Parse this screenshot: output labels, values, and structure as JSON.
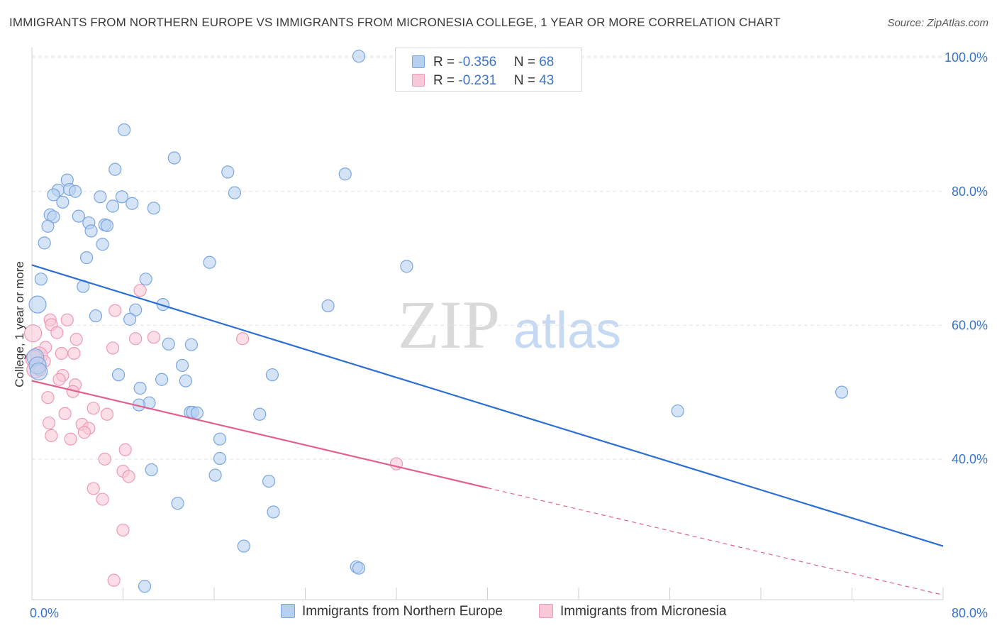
{
  "title": "IMMIGRANTS FROM NORTHERN EUROPE VS IMMIGRANTS FROM MICRONESIA COLLEGE, 1 YEAR OR MORE CORRELATION CHART",
  "source": "Source: ZipAtlas.com",
  "watermark": {
    "zip": "ZIP",
    "atlas": "atlas"
  },
  "legend": {
    "rows": [
      {
        "r_label": "R = ",
        "r_value": "-0.356",
        "n_label": "N = ",
        "n_value": "68"
      },
      {
        "r_label": "R = ",
        "r_value": " -0.231",
        "n_label": "N = ",
        "n_value": "43"
      }
    ]
  },
  "colors": {
    "blue_fill": "#b8d0f0",
    "blue_stroke": "#7aa6e0",
    "blue_line": "#2c6fd1",
    "pink_fill": "#f8c8d6",
    "pink_stroke": "#ee9ab4",
    "pink_line": "#e0608e",
    "grid": "#e3e3e3",
    "tick_label": "#3a74c8"
  },
  "chart_data": {
    "type": "scatter",
    "title": "IMMIGRANTS FROM NORTHERN EUROPE VS IMMIGRANTS FROM MICRONESIA COLLEGE, 1 YEAR OR MORE CORRELATION CHART",
    "xlabel": "",
    "ylabel": "College, 1 year or more",
    "xlim": [
      0,
      80
    ],
    "ylim": [
      19.0,
      101.5
    ],
    "x_tick_labels": [
      {
        "value": 0,
        "label": "0.0%"
      },
      {
        "value": 80,
        "label": "80.0%"
      }
    ],
    "y_tick_labels": [
      {
        "value": 40,
        "label": "40.0%"
      },
      {
        "value": 60,
        "label": "60.0%"
      },
      {
        "value": 80,
        "label": "80.0%"
      },
      {
        "value": 100,
        "label": "100.0%"
      }
    ],
    "grid": true,
    "series": [
      {
        "name": "Immigrants from Northern Europe",
        "color": "blue",
        "R": -0.356,
        "N": 68,
        "trend": {
          "x0": 0,
          "y0": 69.0,
          "x1": 80,
          "y1": 27.0
        },
        "points": [
          [
            28.7,
            100.2
          ],
          [
            8.1,
            89.2
          ],
          [
            12.5,
            85.0
          ],
          [
            7.3,
            83.3
          ],
          [
            17.2,
            82.9
          ],
          [
            27.5,
            82.6
          ],
          [
            3.1,
            81.7
          ],
          [
            2.3,
            80.2
          ],
          [
            3.3,
            80.3
          ],
          [
            3.8,
            80.0
          ],
          [
            1.9,
            79.5
          ],
          [
            6.0,
            79.2
          ],
          [
            7.9,
            79.2
          ],
          [
            17.8,
            79.8
          ],
          [
            2.7,
            78.4
          ],
          [
            7.1,
            77.8
          ],
          [
            8.8,
            78.2
          ],
          [
            10.7,
            77.5
          ],
          [
            1.6,
            76.5
          ],
          [
            1.9,
            76.2
          ],
          [
            4.1,
            76.3
          ],
          [
            1.4,
            74.8
          ],
          [
            5.0,
            75.3
          ],
          [
            6.4,
            75.0
          ],
          [
            6.6,
            74.9
          ],
          [
            5.2,
            74.1
          ],
          [
            1.1,
            72.3
          ],
          [
            6.2,
            72.1
          ],
          [
            4.8,
            70.1
          ],
          [
            15.6,
            69.4
          ],
          [
            32.9,
            68.8
          ],
          [
            0.8,
            66.9
          ],
          [
            10.0,
            66.9
          ],
          [
            4.5,
            65.8
          ],
          [
            0.5,
            63.1
          ],
          [
            11.5,
            63.1
          ],
          [
            26.0,
            62.9
          ],
          [
            9.1,
            62.3
          ],
          [
            5.6,
            61.4
          ],
          [
            8.6,
            60.9
          ],
          [
            12.0,
            57.2
          ],
          [
            14.0,
            57.1
          ],
          [
            0.3,
            55.2
          ],
          [
            0.5,
            54.0
          ],
          [
            13.2,
            54.0
          ],
          [
            0.6,
            53.1
          ],
          [
            7.6,
            52.6
          ],
          [
            21.1,
            52.6
          ],
          [
            11.4,
            51.9
          ],
          [
            13.5,
            51.7
          ],
          [
            9.5,
            50.6
          ],
          [
            10.3,
            48.4
          ],
          [
            9.4,
            48.1
          ],
          [
            71.1,
            50.0
          ],
          [
            56.7,
            47.2
          ],
          [
            13.9,
            47.0
          ],
          [
            14.1,
            47.0
          ],
          [
            14.5,
            46.9
          ],
          [
            20.0,
            46.7
          ],
          [
            16.5,
            43.0
          ],
          [
            16.5,
            40.1
          ],
          [
            10.5,
            38.4
          ],
          [
            16.1,
            37.6
          ],
          [
            20.8,
            36.7
          ],
          [
            12.8,
            33.4
          ],
          [
            21.2,
            32.1
          ],
          [
            18.6,
            27.0
          ],
          [
            28.5,
            23.9
          ],
          [
            28.7,
            23.7
          ],
          [
            9.9,
            21.0
          ]
        ]
      },
      {
        "name": "Immigrants from Micronesia",
        "color": "pink",
        "R": -0.231,
        "N": 43,
        "trend": {
          "x0": 0,
          "y0": 51.7,
          "x1": 40,
          "y1": 35.7,
          "dash_x1": 80,
          "dash_y1": 19.7
        },
        "points": [
          [
            9.5,
            65.2
          ],
          [
            7.3,
            62.2
          ],
          [
            3.1,
            60.8
          ],
          [
            1.6,
            60.8
          ],
          [
            1.7,
            60.1
          ],
          [
            2.2,
            58.9
          ],
          [
            0.1,
            58.8
          ],
          [
            3.9,
            57.9
          ],
          [
            9.1,
            58.0
          ],
          [
            10.7,
            58.2
          ],
          [
            18.5,
            58.0
          ],
          [
            1.2,
            56.7
          ],
          [
            7.1,
            56.6
          ],
          [
            2.6,
            55.8
          ],
          [
            3.7,
            55.8
          ],
          [
            0.6,
            55.5
          ],
          [
            0.2,
            55.0
          ],
          [
            1.1,
            54.6
          ],
          [
            0.3,
            53.4
          ],
          [
            0.7,
            53.3
          ],
          [
            2.7,
            52.5
          ],
          [
            2.4,
            51.9
          ],
          [
            3.8,
            51.1
          ],
          [
            3.6,
            50.1
          ],
          [
            1.4,
            49.2
          ],
          [
            5.4,
            47.6
          ],
          [
            2.9,
            46.8
          ],
          [
            6.6,
            46.7
          ],
          [
            1.5,
            45.4
          ],
          [
            4.4,
            45.2
          ],
          [
            5.0,
            44.6
          ],
          [
            4.6,
            44.0
          ],
          [
            1.7,
            43.5
          ],
          [
            3.4,
            43.0
          ],
          [
            8.2,
            41.4
          ],
          [
            6.4,
            40.0
          ],
          [
            32.0,
            39.3
          ],
          [
            8.0,
            38.2
          ],
          [
            8.5,
            37.4
          ],
          [
            5.4,
            35.6
          ],
          [
            6.2,
            34.0
          ],
          [
            8.0,
            29.4
          ],
          [
            7.2,
            21.9
          ]
        ]
      }
    ]
  },
  "bottom_legend": {
    "items": [
      "Immigrants from Northern Europe",
      "Immigrants from Micronesia"
    ]
  }
}
